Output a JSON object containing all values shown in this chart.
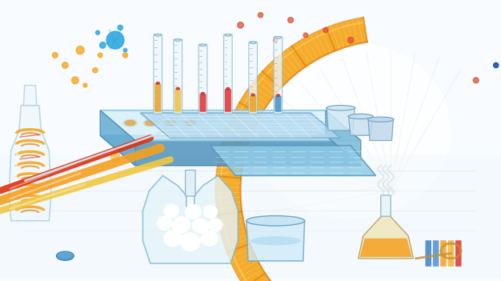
{
  "bg_color": "#ffffff",
  "dna_color": "#f5a820",
  "dna_shadow": "#e08010",
  "tube_body": "#e8f6fb",
  "tube_edge": "#a0cce0",
  "liquid_orange": "#f5a820",
  "liquid_yellow": "#f5d060",
  "liquid_red": "#e03030",
  "liquid_blue": "#5ab8e0",
  "gel_tray_top": "#b8dff0",
  "gel_tray_side": "#6ab0d0",
  "gel_grid": "#ffffff",
  "bottle_body": "#e8f4fa",
  "bottle_coil": "#f5a820",
  "bottle_coil2": "#e03030",
  "pipette1": "#f5a820",
  "pipette2": "#f0c050",
  "pipette3": "#e8e8e8",
  "flask_body": "#ddf0f8",
  "flask_edge": "#90c8e0",
  "beaker_body": "#d8eef8",
  "splash_blue": "#30a8e0",
  "splash_orange": "#f5a820",
  "scatter_orange": "#f5a820",
  "scatter_red": "#e05030",
  "scatter_blue_dot": "#2060c0",
  "white_bg": "#ffffff",
  "light_blue_bg": "#e8f4fa"
}
